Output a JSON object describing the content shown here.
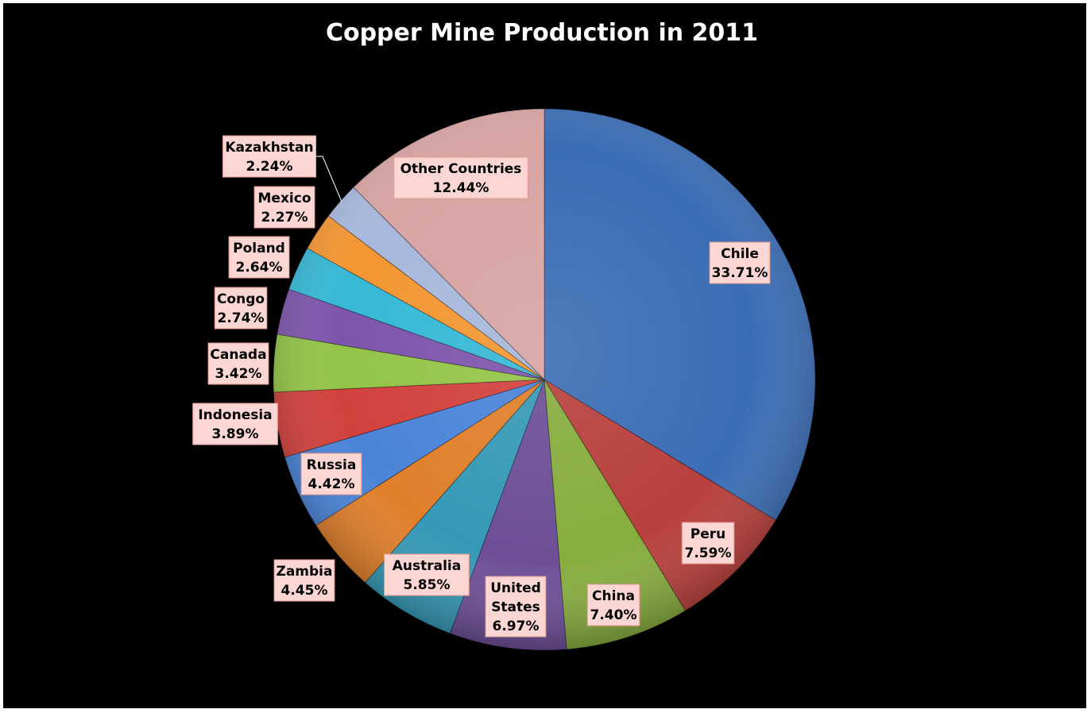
{
  "chart_data": {
    "type": "pie",
    "title": "Copper Mine Production in 2011",
    "slices": [
      {
        "label": "Chile",
        "value": 33.71,
        "display": "33.71%",
        "color": "#3b6db5"
      },
      {
        "label": "Peru",
        "value": 7.59,
        "display": "7.59%",
        "color": "#b8403d"
      },
      {
        "label": "China",
        "value": 7.4,
        "display": "7.40%",
        "color": "#87ad3f"
      },
      {
        "label": "United States",
        "value": 6.97,
        "display": "6.97%",
        "color": "#6e4f97"
      },
      {
        "label": "Australia",
        "value": 5.85,
        "display": "5.85%",
        "color": "#3699b6"
      },
      {
        "label": "Zambia",
        "value": 4.45,
        "display": "4.45%",
        "color": "#e07f2a"
      },
      {
        "label": "Russia",
        "value": 4.42,
        "display": "4.42%",
        "color": "#4a84d8"
      },
      {
        "label": "Indonesia",
        "value": 3.89,
        "display": "3.89%",
        "color": "#d2403c"
      },
      {
        "label": "Canada",
        "value": 3.42,
        "display": "3.42%",
        "color": "#93c447"
      },
      {
        "label": "Congo",
        "value": 2.74,
        "display": "2.74%",
        "color": "#7d55ac"
      },
      {
        "label": "Poland",
        "value": 2.64,
        "display": "2.64%",
        "color": "#36b8d6"
      },
      {
        "label": "Mexico",
        "value": 2.27,
        "display": "2.27%",
        "color": "#f49632"
      },
      {
        "label": "Kazakhstan",
        "value": 2.24,
        "display": "2.24%",
        "color": "#a7b8dc"
      },
      {
        "label": "Other Countries",
        "value": 12.44,
        "display": "12.44%",
        "color": "#d7a4a2"
      }
    ]
  }
}
